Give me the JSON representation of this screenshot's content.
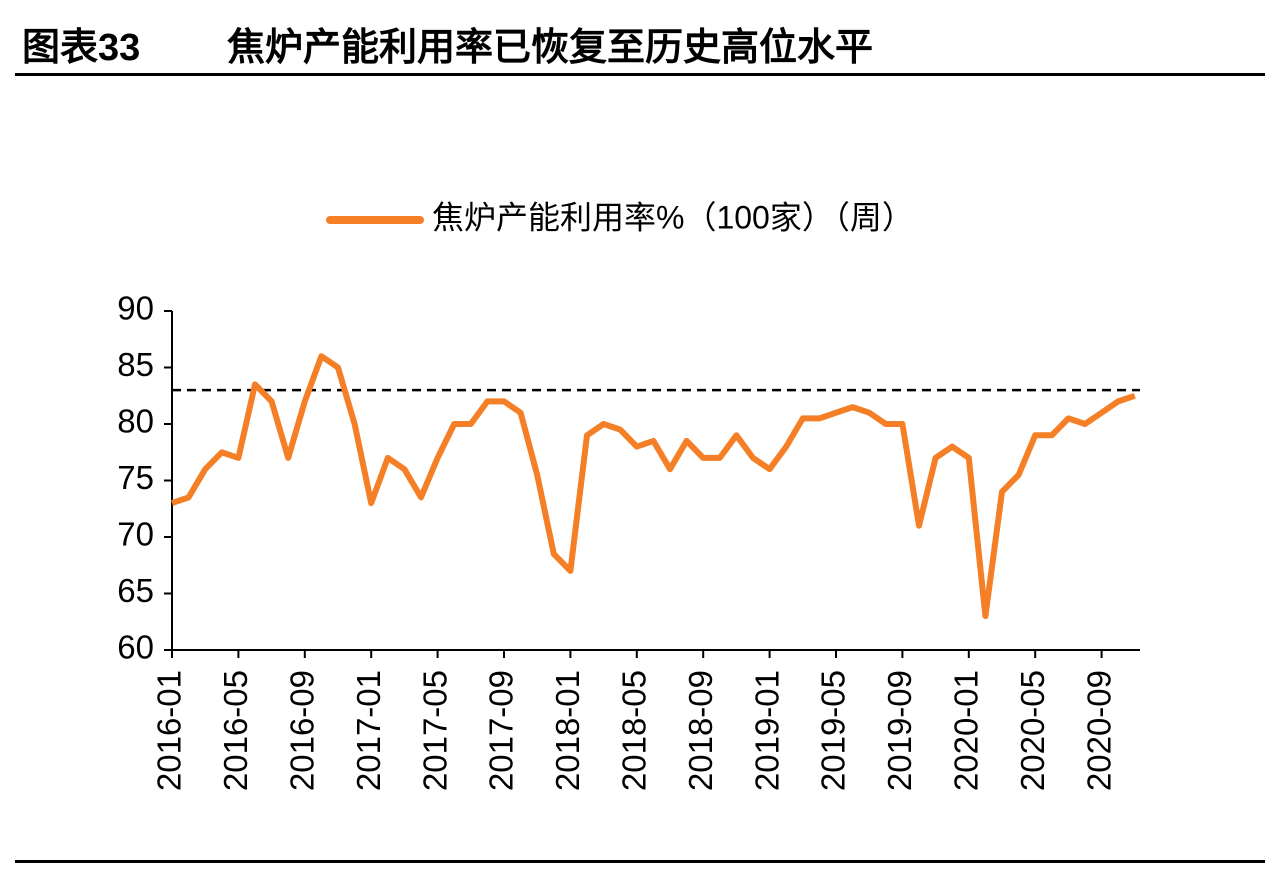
{
  "header": {
    "label": "图表33",
    "title": "焦炉产能利用率已恢复至历史高位水平"
  },
  "chart_data": {
    "type": "line",
    "categories": [
      "2016-01",
      null,
      null,
      null,
      "2016-05",
      null,
      null,
      null,
      "2016-09",
      null,
      null,
      null,
      "2017-01",
      null,
      null,
      null,
      "2017-05",
      null,
      null,
      null,
      "2017-09",
      null,
      null,
      null,
      "2018-01",
      null,
      null,
      null,
      "2018-05",
      null,
      null,
      null,
      "2018-09",
      null,
      null,
      null,
      "2019-01",
      null,
      null,
      null,
      "2019-05",
      null,
      null,
      null,
      "2019-09",
      null,
      null,
      null,
      "2020-01",
      null,
      null,
      null,
      "2020-05",
      null,
      null,
      null,
      "2020-09",
      null,
      null
    ],
    "series": [
      {
        "name": "焦炉产能利用率%（100家）（周）",
        "color": "#f47f26",
        "values": [
          73,
          73.5,
          76,
          77.5,
          77,
          83.5,
          82,
          77,
          82,
          86,
          85,
          80,
          73,
          77,
          76,
          73.5,
          77,
          80,
          80,
          82,
          82,
          81,
          75.5,
          68.5,
          67,
          79,
          80,
          79.5,
          78,
          78.5,
          76,
          78.5,
          77,
          77,
          79,
          77,
          76,
          78,
          80.5,
          80.5,
          81,
          81.5,
          81,
          80,
          80,
          71,
          77,
          78,
          77,
          63,
          74,
          75.5,
          79,
          79,
          80.5,
          80,
          81,
          82,
          82.5
        ]
      }
    ],
    "reference_line": 83,
    "ylim": [
      60,
      90
    ],
    "yticks": [
      60,
      65,
      70,
      75,
      80,
      85,
      90
    ]
  }
}
